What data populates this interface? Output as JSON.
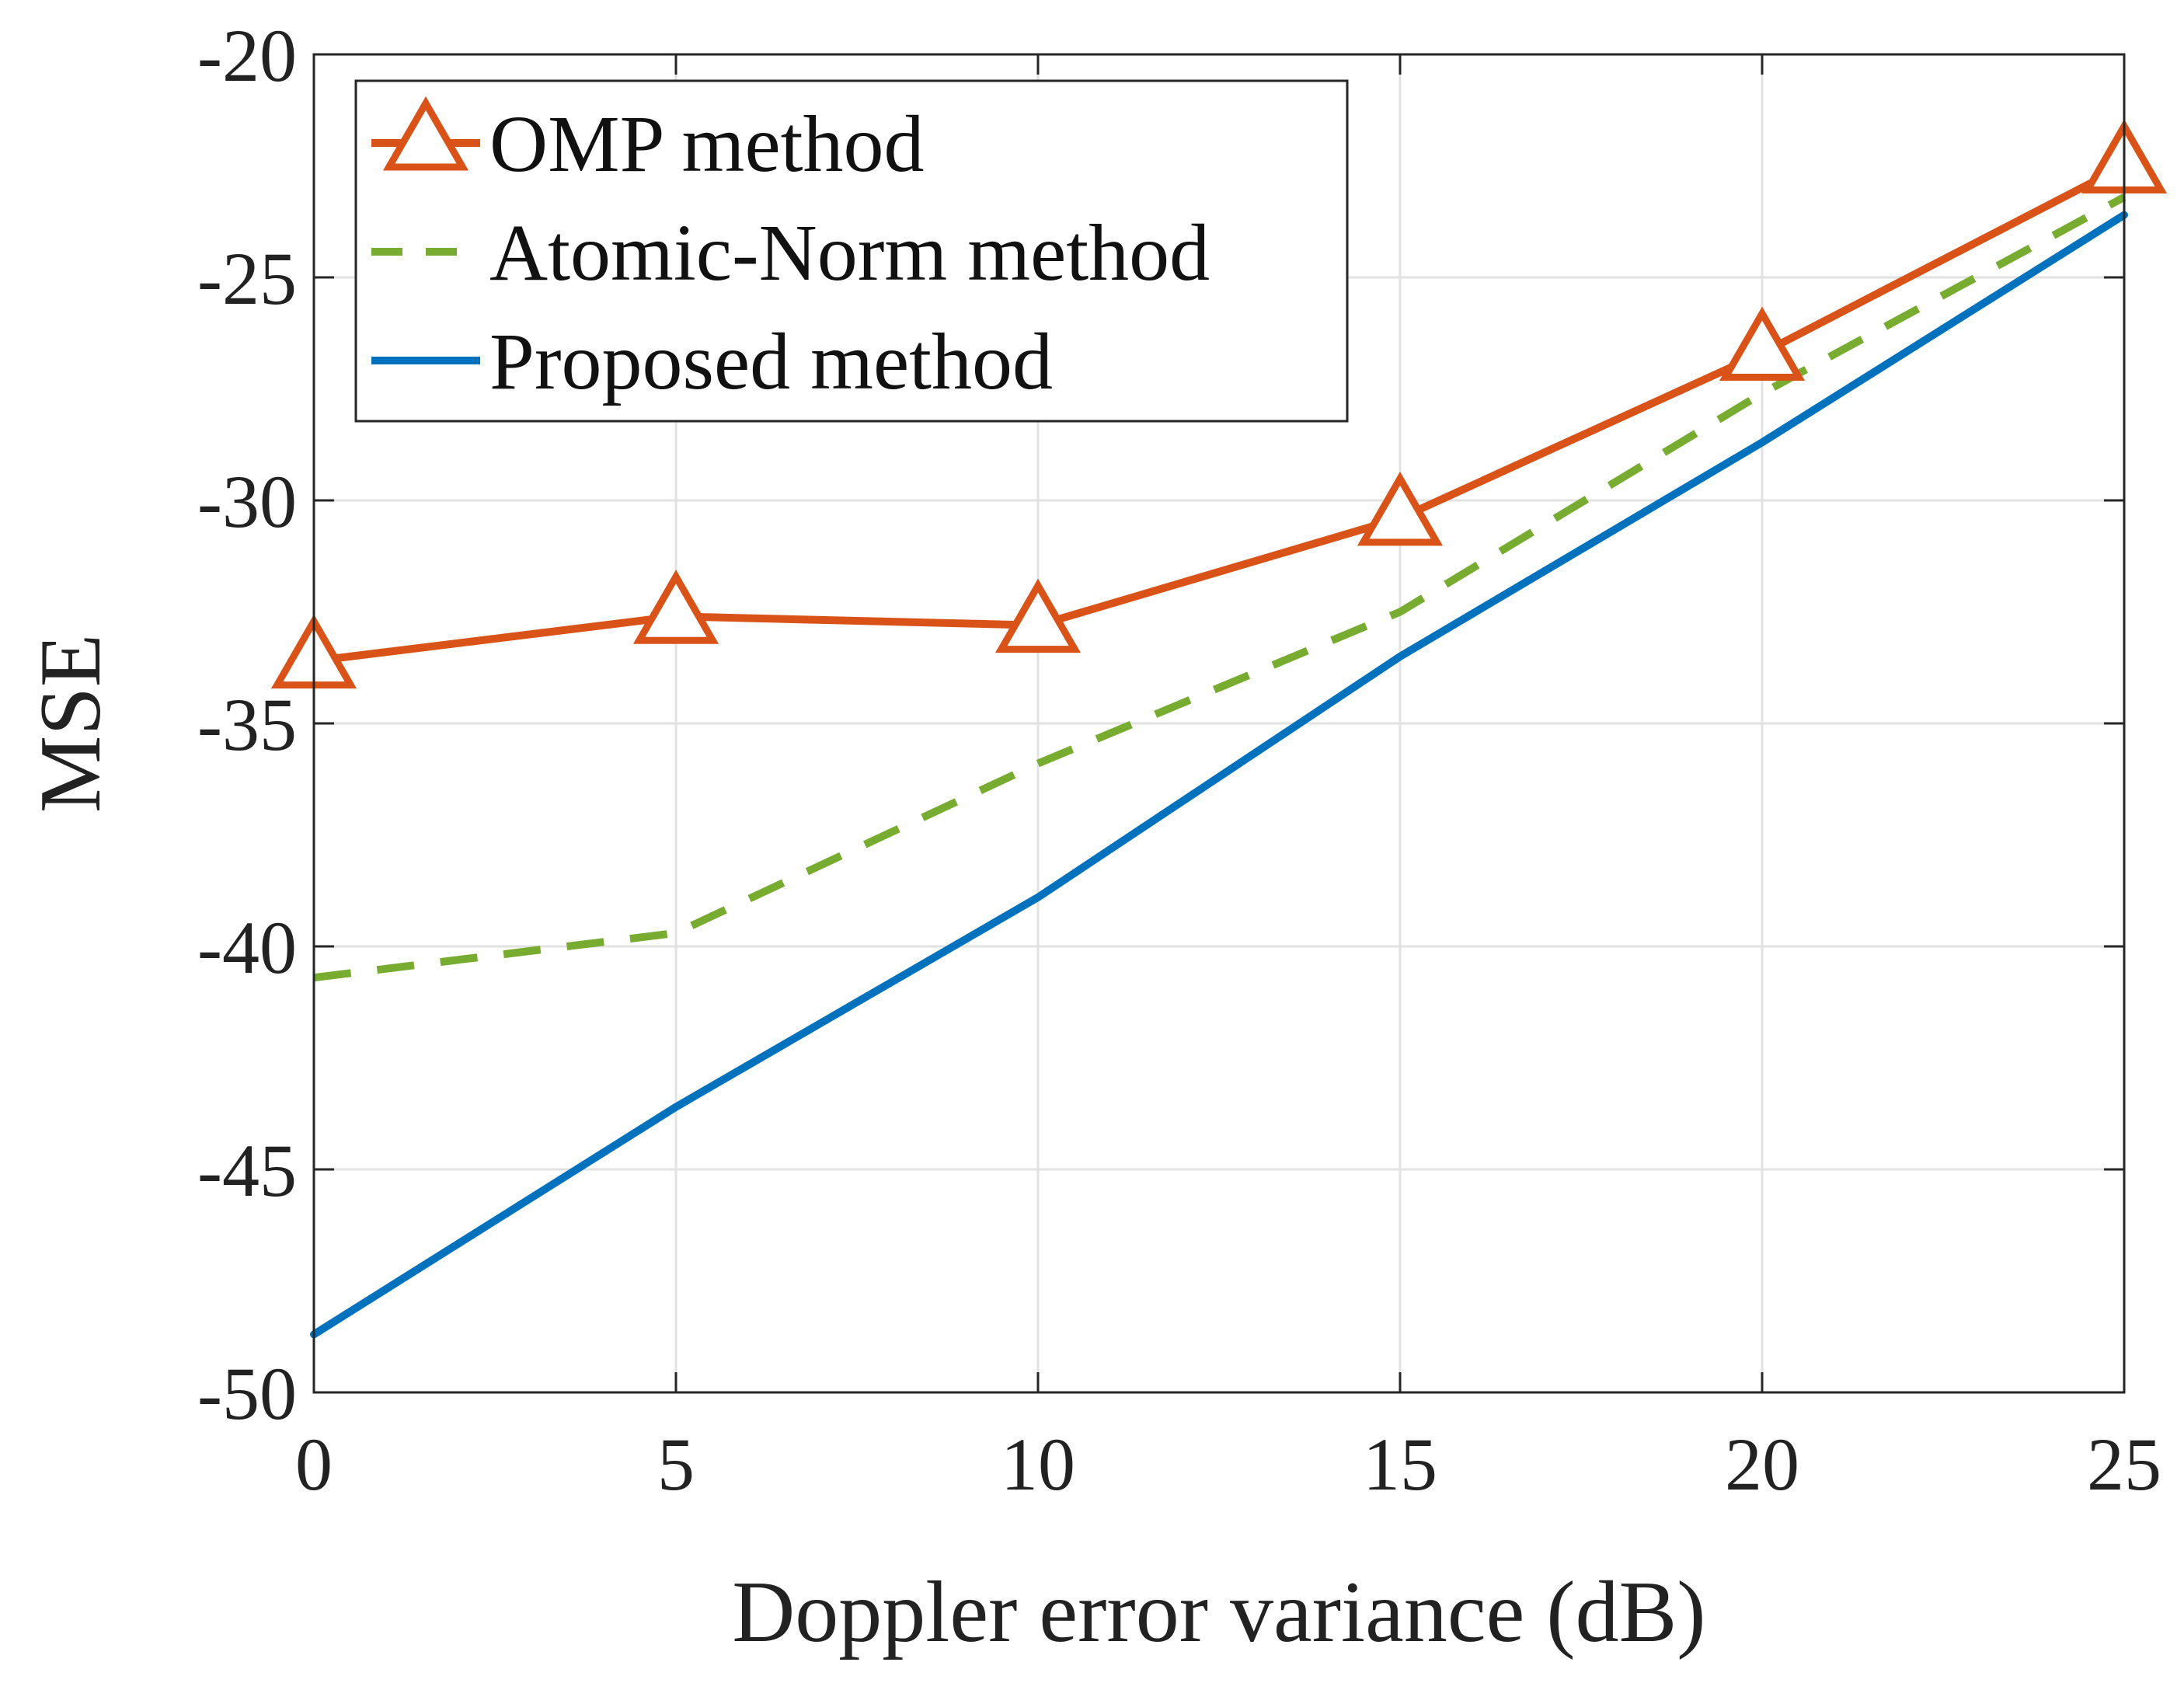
{
  "chart_data": {
    "type": "line",
    "title": "",
    "xlabel": "Doppler error variance (dB)",
    "ylabel": "MSE",
    "xlim": [
      0,
      25
    ],
    "ylim": [
      -50,
      -20
    ],
    "xticks": [
      0,
      5,
      10,
      15,
      20,
      25
    ],
    "yticks": [
      -50,
      -45,
      -40,
      -35,
      -30,
      -25,
      -20
    ],
    "xtick_labels": [
      "0",
      "5",
      "10",
      "15",
      "20",
      "25"
    ],
    "ytick_labels": [
      "-50",
      "-45",
      "-40",
      "-35",
      "-30",
      "-25",
      "-20"
    ],
    "grid": true,
    "legend_position": "top-left",
    "x": [
      0,
      5,
      10,
      15,
      20,
      25
    ],
    "series": [
      {
        "name": "OMP method",
        "values": [
          -33.6,
          -32.6,
          -32.8,
          -30.4,
          -26.7,
          -22.5
        ],
        "color": "#D95319",
        "style": "solid",
        "marker": "triangle"
      },
      {
        "name": "Atomic-Norm method",
        "values": [
          -40.7,
          -39.7,
          -35.9,
          -32.5,
          -27.6,
          -23.2
        ],
        "color": "#77AC30",
        "style": "dashed",
        "marker": "none"
      },
      {
        "name": "Proposed method",
        "values": [
          -48.7,
          -43.6,
          -38.9,
          -33.5,
          -28.7,
          -23.6
        ],
        "color": "#0072BD",
        "style": "solid",
        "marker": "none"
      }
    ]
  }
}
